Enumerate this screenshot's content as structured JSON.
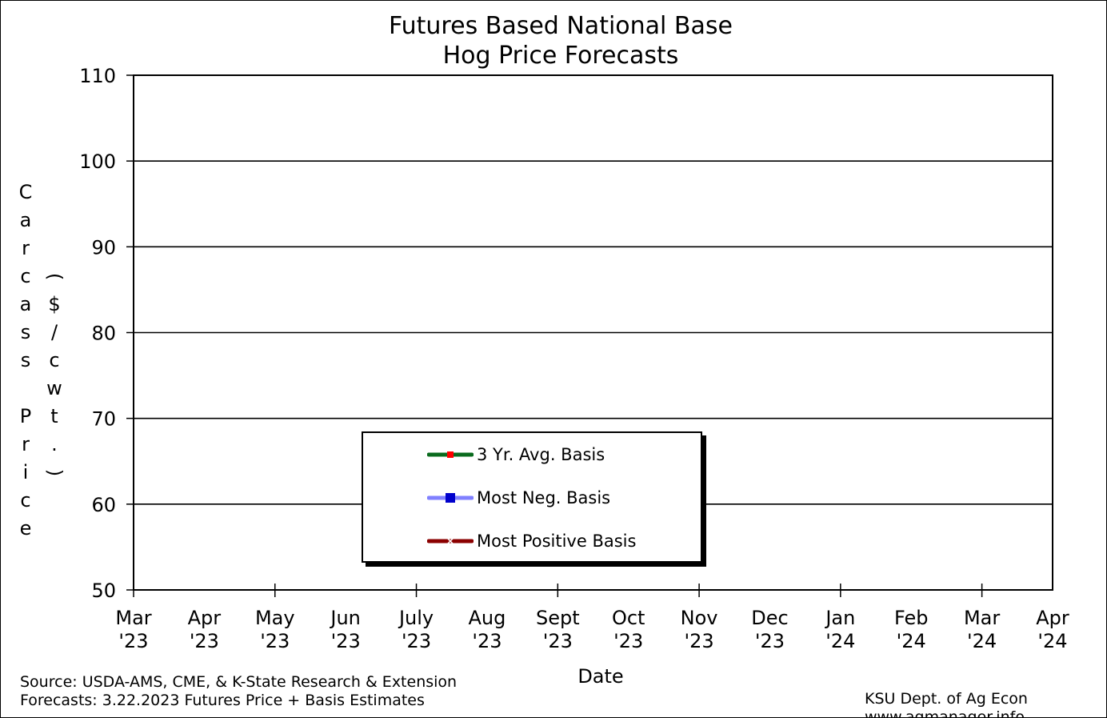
{
  "chart_data": {
    "type": "line",
    "title_lines": [
      "Futures Based National Base",
      "Hog Price Forecasts"
    ],
    "ylabel_main": "Carcass Price",
    "ylabel_unit": "($/cwt.)",
    "xlabel": "Date",
    "ylim": [
      50,
      110
    ],
    "yticks": [
      50,
      60,
      70,
      80,
      90,
      100,
      110
    ],
    "x_categories": [
      [
        "Mar",
        "'23"
      ],
      [
        "Apr",
        "'23"
      ],
      [
        "May",
        "'23"
      ],
      [
        "Jun",
        "'23"
      ],
      [
        "July",
        "'23"
      ],
      [
        "Aug",
        "'23"
      ],
      [
        "Sept",
        "'23"
      ],
      [
        "Oct",
        "'23"
      ],
      [
        "Nov",
        "'23"
      ],
      [
        "Dec",
        "'23"
      ],
      [
        "Jan",
        "'24"
      ],
      [
        "Feb",
        "'24"
      ],
      [
        "Mar",
        "'24"
      ],
      [
        "Apr",
        "'24"
      ]
    ],
    "grid": "horizontal",
    "legend_placement": "lower-center",
    "series": [
      {
        "name": "3 Yr. Avg. Basis",
        "line_color": "#0a6b1e",
        "marker_color": "#ff0000",
        "marker": "square",
        "values": []
      },
      {
        "name": "Most Neg. Basis",
        "line_color": "#8080ff",
        "marker_color": "#0000cc",
        "marker": "square",
        "values": []
      },
      {
        "name": "Most Positive Basis",
        "line_color": "#8b0000",
        "marker_color": "#ffffff",
        "marker": "x",
        "values": []
      }
    ]
  },
  "footer": {
    "source": "Source: USDA-AMS, CME, & K-State Research & Extension",
    "forecasts": "Forecasts: 3.22.2023 Futures Price + Basis Estimates",
    "dept": "KSU Dept. of Ag Econ",
    "site": "www.agmanager.info"
  }
}
